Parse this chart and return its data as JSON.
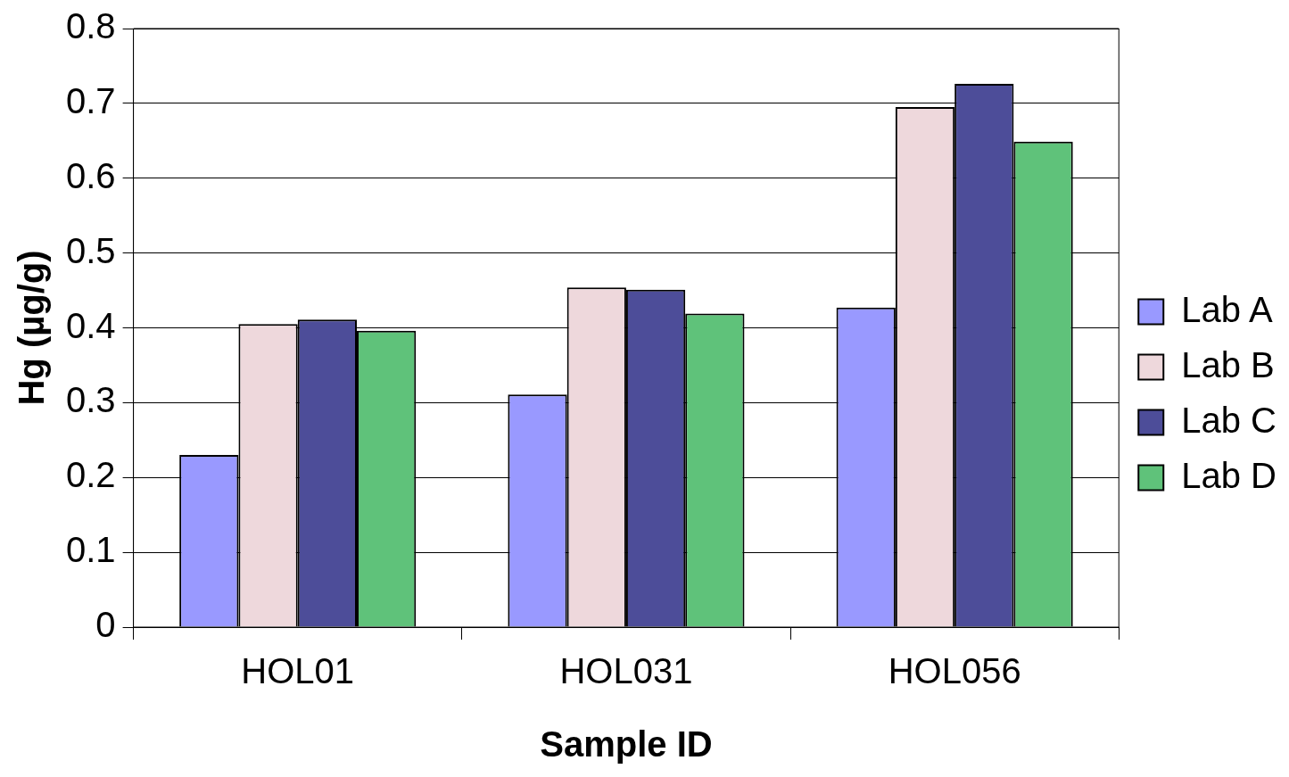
{
  "chart_data": {
    "type": "bar",
    "xlabel": "Sample ID",
    "ylabel": "Hg (µg/g)",
    "categories": [
      "HOL01",
      "HOL031",
      "HOL056"
    ],
    "series": [
      {
        "name": "Lab A",
        "color": "#9999ff",
        "values": [
          0.23,
          0.311,
          0.427
        ]
      },
      {
        "name": "Lab B",
        "color": "#eed8dc",
        "values": [
          0.405,
          0.454,
          0.695
        ]
      },
      {
        "name": "Lab C",
        "color": "#4d4d99",
        "values": [
          0.411,
          0.451,
          0.726
        ]
      },
      {
        "name": "Lab D",
        "color": "#5fc27a",
        "values": [
          0.396,
          0.419,
          0.649
        ]
      }
    ],
    "ylim": [
      0,
      0.8
    ],
    "yticks": [
      0,
      0.1,
      0.2,
      0.3,
      0.4,
      0.5,
      0.6,
      0.7,
      0.8
    ],
    "grid": "y",
    "legend": "right"
  }
}
